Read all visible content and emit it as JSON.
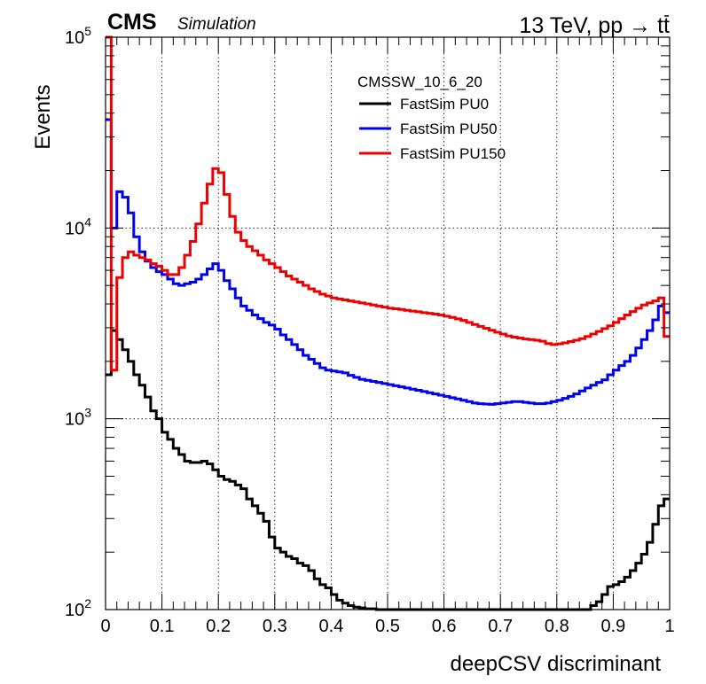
{
  "header": {
    "experiment": "CMS",
    "tag": "Simulation",
    "energy_prefix": "13 TeV, pp → t",
    "energy_suffix": "t"
  },
  "chart_data": {
    "type": "line",
    "title": "",
    "xlabel": "deepCSV discriminant",
    "ylabel": "Events",
    "xlim": [
      0,
      1
    ],
    "ylim": [
      100,
      100000
    ],
    "log_y": true,
    "grid": true,
    "x_tick_labels": [
      "0",
      "0.1",
      "0.2",
      "0.3",
      "0.4",
      "0.5",
      "0.6",
      "0.7",
      "0.8",
      "0.9",
      "1"
    ],
    "y_tick_labels": [
      {
        "value": 100,
        "base": "10",
        "exp": "2"
      },
      {
        "value": 1000,
        "base": "10",
        "exp": "3"
      },
      {
        "value": 10000,
        "base": "10",
        "exp": "4"
      },
      {
        "value": 100000,
        "base": "10",
        "exp": "5"
      }
    ],
    "legend": {
      "header": "CMSSW_10_6_20",
      "placement": "top-right"
    },
    "bin_width": 0.01,
    "series": [
      {
        "name": "FastSim PU0",
        "color": "#000000",
        "values": [
          1700,
          2900,
          2600,
          2300,
          2000,
          1700,
          1500,
          1300,
          1100,
          1000,
          850,
          780,
          700,
          650,
          600,
          590,
          590,
          600,
          580,
          540,
          500,
          480,
          470,
          450,
          430,
          380,
          350,
          320,
          290,
          240,
          210,
          200,
          190,
          185,
          175,
          170,
          160,
          145,
          135,
          130,
          120,
          112,
          108,
          105,
          103,
          102,
          101,
          101,
          100,
          100,
          100,
          100,
          100,
          100,
          100,
          100,
          100,
          100,
          100,
          100,
          100,
          100,
          100,
          100,
          100,
          100,
          100,
          100,
          100,
          100,
          100,
          100,
          100,
          100,
          100,
          100,
          100,
          100,
          100,
          100,
          100,
          100,
          100,
          100,
          100,
          100,
          105,
          110,
          120,
          132,
          135,
          140,
          148,
          160,
          175,
          195,
          225,
          280,
          350,
          380
        ]
      },
      {
        "name": "FastSim PU50",
        "color": "#0000ee",
        "values": [
          37000,
          10000,
          15500,
          14500,
          12000,
          9000,
          7500,
          6700,
          6200,
          5900,
          5700,
          5400,
          5100,
          5000,
          5100,
          5200,
          5400,
          5700,
          6100,
          6500,
          6000,
          5300,
          4800,
          4300,
          3900,
          3700,
          3500,
          3350,
          3200,
          3100,
          2950,
          2750,
          2600,
          2450,
          2300,
          2150,
          2050,
          1950,
          1850,
          1800,
          1780,
          1760,
          1740,
          1690,
          1650,
          1610,
          1590,
          1570,
          1550,
          1530,
          1510,
          1490,
          1470,
          1450,
          1430,
          1410,
          1390,
          1370,
          1350,
          1330,
          1310,
          1290,
          1270,
          1250,
          1230,
          1210,
          1200,
          1195,
          1190,
          1200,
          1210,
          1220,
          1230,
          1230,
          1220,
          1210,
          1200,
          1200,
          1210,
          1230,
          1250,
          1280,
          1310,
          1350,
          1400,
          1450,
          1500,
          1550,
          1600,
          1700,
          1800,
          1900,
          2000,
          2150,
          2350,
          2600,
          2900,
          3300,
          3900,
          3600
        ]
      },
      {
        "name": "FastSim PU150",
        "color": "#ee0000",
        "values": [
          100000,
          1800,
          5500,
          7000,
          7500,
          7200,
          7000,
          6800,
          6500,
          6300,
          6000,
          5700,
          5700,
          6200,
          7200,
          8500,
          10500,
          13500,
          17000,
          20500,
          19500,
          15000,
          11500,
          9500,
          8600,
          8000,
          7600,
          7200,
          6800,
          6500,
          6200,
          5900,
          5600,
          5400,
          5200,
          5000,
          4800,
          4650,
          4500,
          4400,
          4300,
          4250,
          4200,
          4150,
          4100,
          4050,
          4000,
          3950,
          3900,
          3850,
          3800,
          3770,
          3740,
          3700,
          3670,
          3640,
          3600,
          3570,
          3540,
          3500,
          3450,
          3400,
          3340,
          3280,
          3200,
          3120,
          3050,
          2980,
          2910,
          2840,
          2780,
          2720,
          2680,
          2650,
          2620,
          2600,
          2580,
          2550,
          2480,
          2450,
          2470,
          2500,
          2540,
          2580,
          2630,
          2700,
          2780,
          2870,
          2970,
          3070,
          3200,
          3350,
          3500,
          3650,
          3800,
          3950,
          4050,
          4150,
          4300,
          2700
        ]
      }
    ]
  }
}
